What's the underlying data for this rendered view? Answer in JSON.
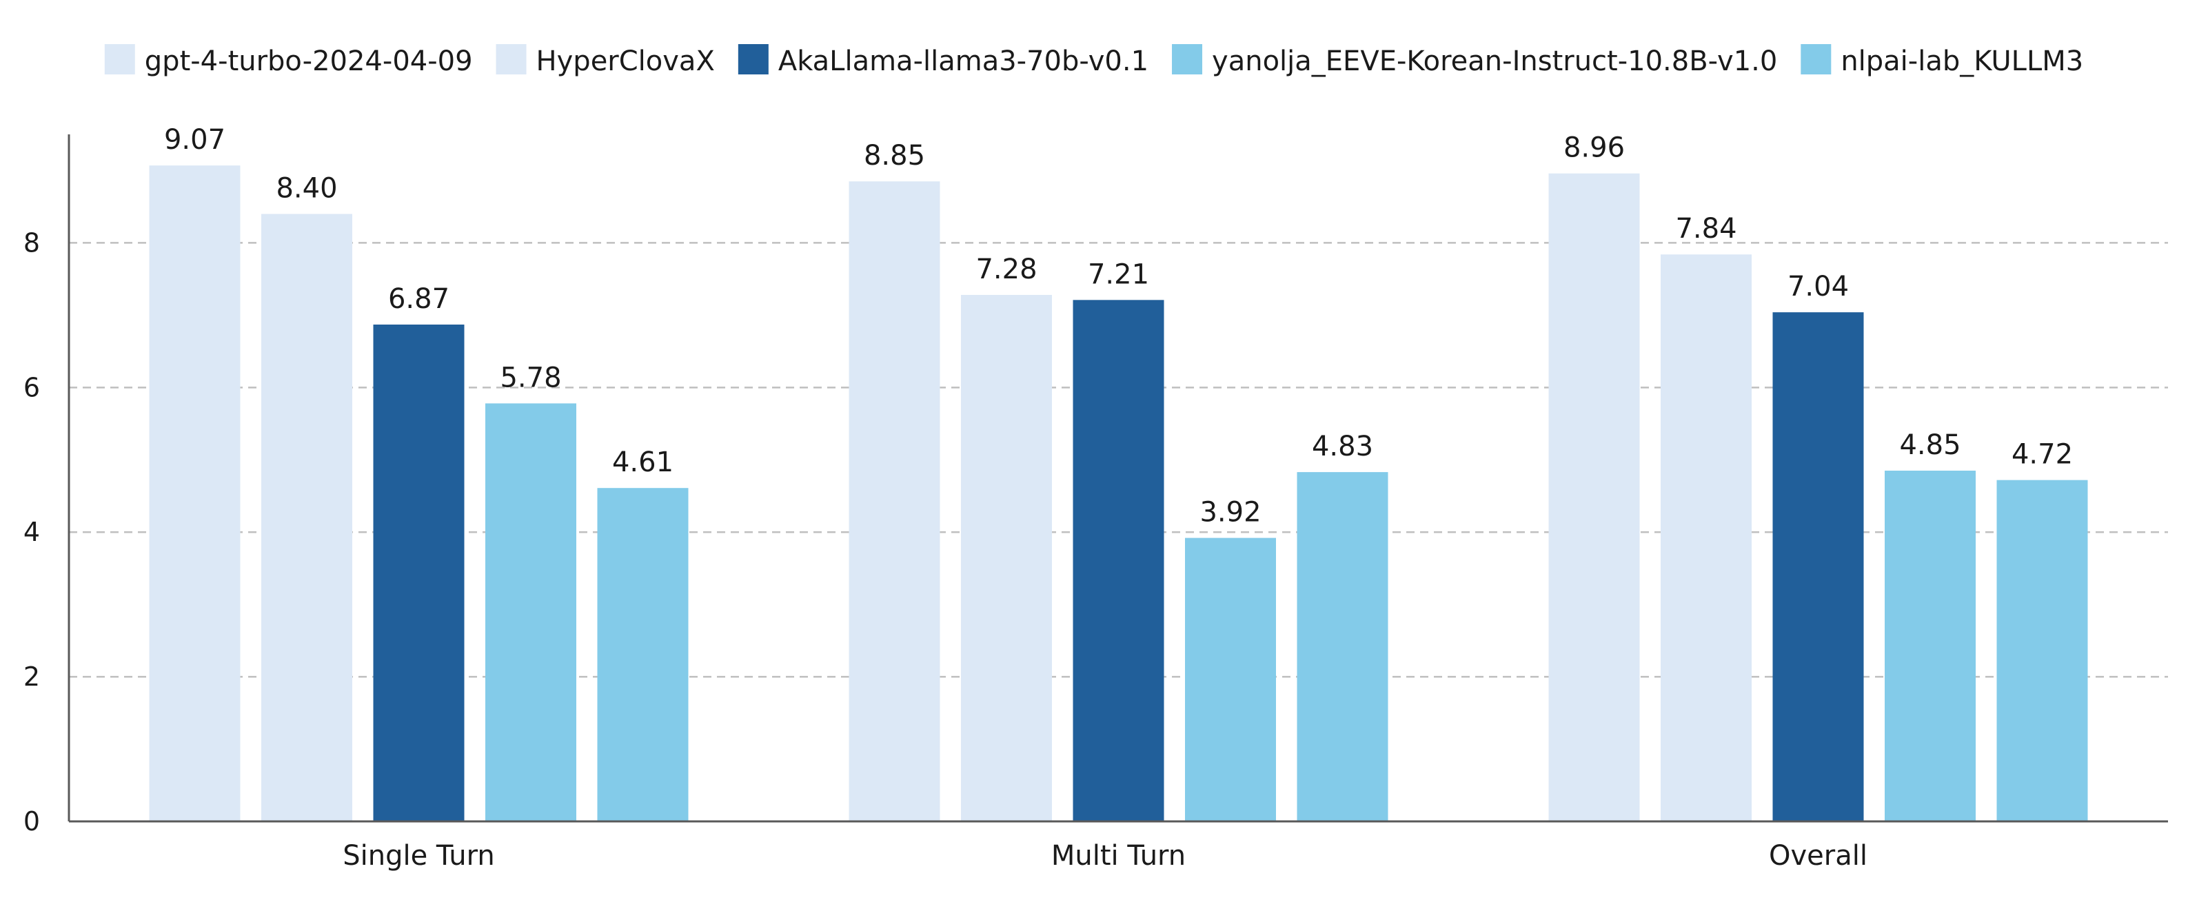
{
  "chart_data": {
    "type": "bar",
    "title": "",
    "xlabel": "",
    "ylabel": "",
    "ylim": [
      0,
      9.5
    ],
    "yticks": [
      "0",
      "2",
      "4",
      "6",
      "8"
    ],
    "grid": "horizontal dashed",
    "legend_position": "top",
    "categories": [
      "Single Turn",
      "Multi Turn",
      "Overall"
    ],
    "series": [
      {
        "name": "gpt-4-turbo-2024-04-09",
        "color": "#dce8f6",
        "values": [
          9.07,
          8.85,
          8.96
        ],
        "labels": [
          "9.07",
          "8.85",
          "8.96"
        ]
      },
      {
        "name": "HyperClovaX",
        "color": "#dce8f6",
        "values": [
          8.4,
          7.28,
          7.84
        ],
        "labels": [
          "8.40",
          "7.28",
          "7.84"
        ]
      },
      {
        "name": "AkaLlama-llama3-70b-v0.1",
        "color": "#215f9a",
        "values": [
          6.87,
          7.21,
          7.04
        ],
        "labels": [
          "6.87",
          "7.21",
          "7.04"
        ]
      },
      {
        "name": "yanolja_EEVE-Korean-Instruct-10.8B-v1.0",
        "color": "#83cbe9",
        "values": [
          5.78,
          3.92,
          4.85
        ],
        "labels": [
          "5.78",
          "3.92",
          "4.85"
        ]
      },
      {
        "name": "nlpai-lab_KULLM3",
        "color": "#83cbe9",
        "values": [
          4.61,
          4.83,
          4.72
        ],
        "labels": [
          "4.61",
          "4.83",
          "4.72"
        ]
      }
    ],
    "colors": {
      "axis": "#595959",
      "grid": "#bfbfbf",
      "text": "#1a1a1a"
    }
  }
}
